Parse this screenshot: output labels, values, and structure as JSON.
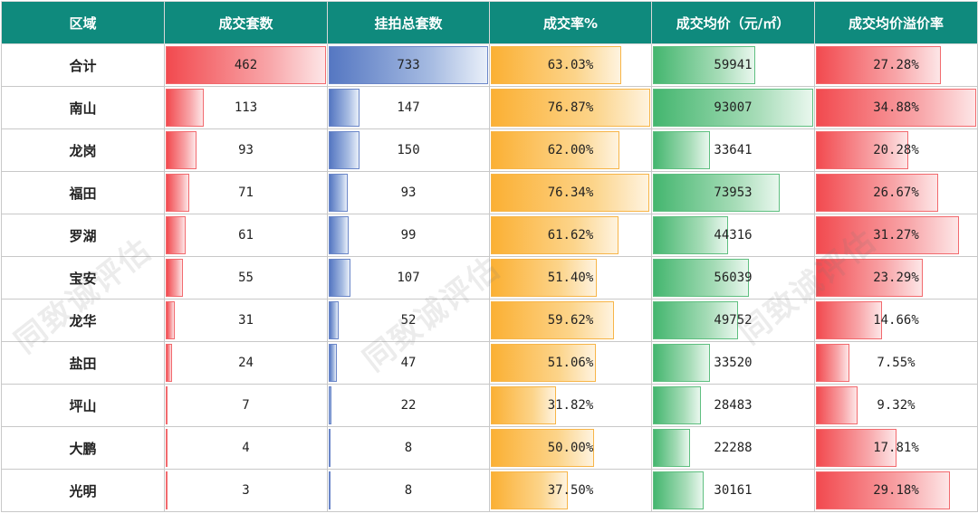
{
  "headers": [
    "区域",
    "成交套数",
    "挂拍总套数",
    "成交率%",
    "成交均价（元/㎡）",
    "成交均价溢价率"
  ],
  "rows": [
    {
      "region": "合计",
      "deals": "462",
      "listed": "733",
      "rate": "63.03%",
      "price": "59941",
      "premium": "27.28%"
    },
    {
      "region": "南山",
      "deals": "113",
      "listed": "147",
      "rate": "76.87%",
      "price": "93007",
      "premium": "34.88%"
    },
    {
      "region": "龙岗",
      "deals": "93",
      "listed": "150",
      "rate": "62.00%",
      "price": "33641",
      "premium": "20.28%"
    },
    {
      "region": "福田",
      "deals": "71",
      "listed": "93",
      "rate": "76.34%",
      "price": "73953",
      "premium": "26.67%"
    },
    {
      "region": "罗湖",
      "deals": "61",
      "listed": "99",
      "rate": "61.62%",
      "price": "44316",
      "premium": "31.27%"
    },
    {
      "region": "宝安",
      "deals": "55",
      "listed": "107",
      "rate": "51.40%",
      "price": "56039",
      "premium": "23.29%"
    },
    {
      "region": "龙华",
      "deals": "31",
      "listed": "52",
      "rate": "59.62%",
      "price": "49752",
      "premium": "14.66%"
    },
    {
      "region": "盐田",
      "deals": "24",
      "listed": "47",
      "rate": "51.06%",
      "price": "33520",
      "premium": "7.55%"
    },
    {
      "region": "坪山",
      "deals": "7",
      "listed": "22",
      "rate": "31.82%",
      "price": "28483",
      "premium": "9.32%"
    },
    {
      "region": "大鹏",
      "deals": "4",
      "listed": "8",
      "rate": "50.00%",
      "price": "22288",
      "premium": "17.81%"
    },
    {
      "region": "光明",
      "deals": "3",
      "listed": "8",
      "rate": "37.50%",
      "price": "30161",
      "premium": "29.18%"
    }
  ],
  "bar_colors": {
    "deals": "#f24a4f",
    "listed": "#5577c2",
    "rate": "#fbb034",
    "price": "#44b66f",
    "premium": "#f24a4f"
  },
  "watermark": "同致诚评估"
}
